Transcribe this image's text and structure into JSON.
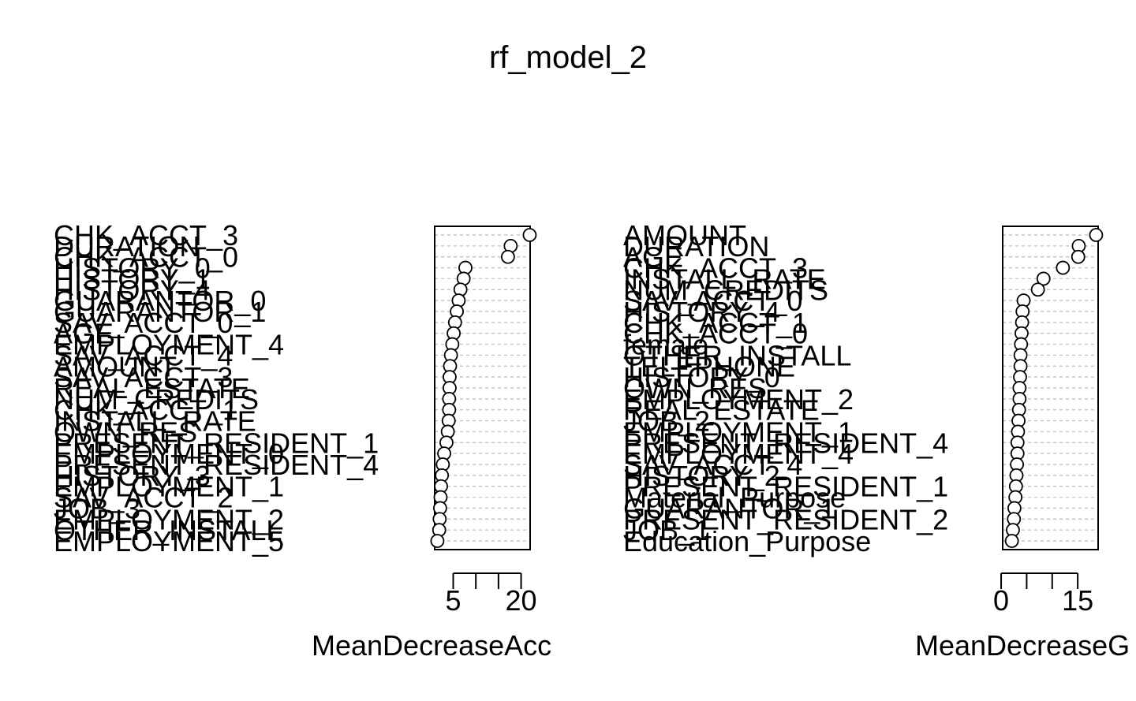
{
  "title": "rf_model_2",
  "chart_data": [
    {
      "type": "scatter",
      "subtype": "dotchart",
      "xlabel": "MeanDecreaseAccuracy",
      "xlabel_visible": "MeanDecreaseAcc",
      "xlim": [
        0.9,
        22.0
      ],
      "xticks": [
        5,
        10,
        15,
        20
      ],
      "xtick_labels": [
        "5",
        "",
        "",
        "20"
      ],
      "grid": true,
      "categories": [
        "CHK_ACCT_3",
        "DURATION",
        "CHK_ACCT_0",
        "HISTORY_0",
        "HISTORY_1",
        "HISTORY_4",
        "GUARANTOR_0",
        "GUARANTOR_1",
        "SAV_ACCT_0",
        "AGE",
        "EMPLOYMENT_4",
        "SAV_ACCT_4",
        "AMOUNT",
        "SAV_ACCT_3",
        "REAL_ESTATE",
        "NUM_CREDITS",
        "CHK_ACCT_1",
        "INSTALL_RATE",
        "OWN_RES",
        "PRESENT_RESIDENT_1",
        "EMPLOYMENT_0",
        "PRESENT_RESIDENT_4",
        "HISTORY_3",
        "EMPLOYMENT_1",
        "SAV_ACCT_2",
        "JOB_3",
        "EMPLOYMENT_2",
        "OTHER_INSTALL",
        "EMPLOYMENT_5"
      ],
      "values": [
        21.9,
        17.7,
        17.1,
        7.7,
        7.3,
        6.6,
        6.2,
        5.8,
        5.4,
        5.1,
        4.8,
        4.5,
        4.3,
        4.2,
        4.2,
        4.1,
        4.1,
        4.0,
        3.8,
        3.5,
        3.0,
        2.7,
        2.5,
        2.3,
        2.2,
        2.1,
        2.0,
        1.9,
        1.5
      ]
    },
    {
      "type": "scatter",
      "subtype": "dotchart",
      "xlabel": "MeanDecreaseGini",
      "xlabel_visible": "MeanDecreaseG",
      "xlim": [
        0.3,
        19.0
      ],
      "xticks": [
        0,
        5,
        10,
        15
      ],
      "xtick_labels": [
        "0",
        "",
        "",
        "15"
      ],
      "grid": true,
      "categories": [
        "AMOUNT",
        "DURATION",
        "AGE",
        "CHK_ACCT_3",
        "INSTALL_RATE",
        "NUM_CREDITS",
        "SAV_ACCT_0",
        "HISTORY_4",
        "CHK_ACCT_1",
        "CHK_ACCT_0",
        "female",
        "OTHER_INSTALL",
        "TELEPHONE",
        "HISTORY_0",
        "OWN_RES",
        "EMPLOYMENT_2",
        "REAL_ESTATE",
        "JOB_2",
        "EMPLOYMENT_1",
        "PRESENT_RESIDENT_4",
        "EMPLOYMENT_4",
        "SAV_ACCT_4",
        "HISTORY_2",
        "PRESENT_RESIDENT_1",
        "Material_Purpose",
        "GUARANTOR_1",
        "PRESENT_RESIDENT_2",
        "JOB_1",
        "Education_Purpose"
      ],
      "values": [
        18.6,
        15.2,
        15.1,
        12.1,
        8.3,
        7.2,
        4.4,
        4.2,
        4.1,
        4.0,
        3.9,
        3.8,
        3.8,
        3.7,
        3.6,
        3.6,
        3.5,
        3.4,
        3.3,
        3.2,
        3.2,
        3.1,
        3.0,
        2.9,
        2.8,
        2.6,
        2.5,
        2.3,
        2.1
      ]
    }
  ]
}
